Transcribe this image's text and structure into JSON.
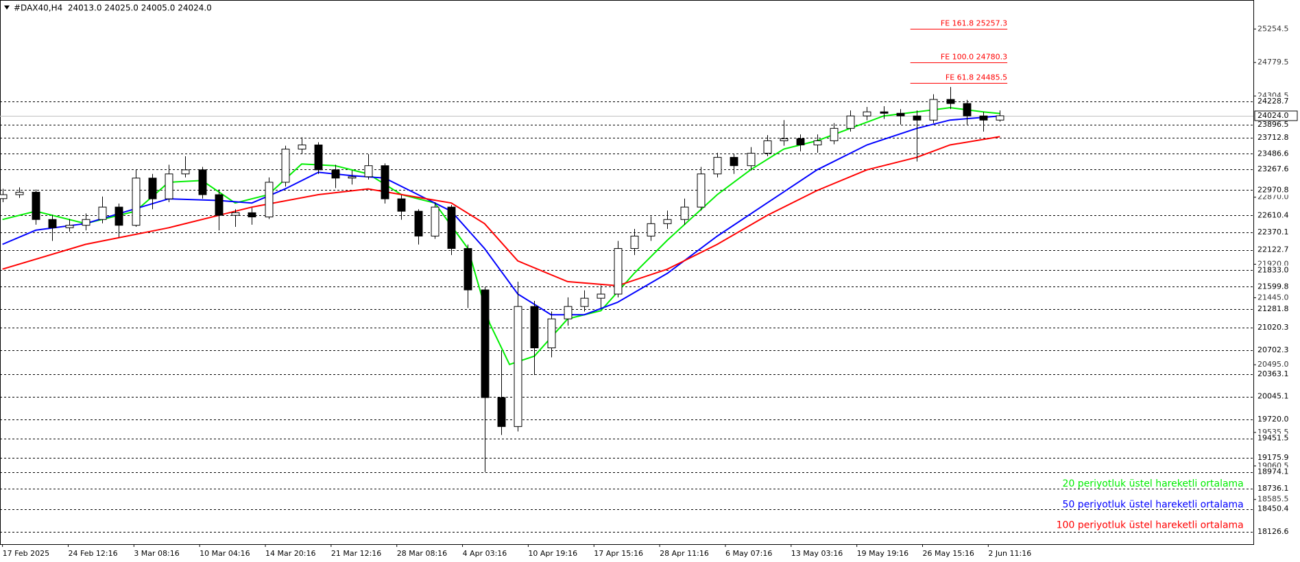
{
  "chart_data": {
    "type": "candlestick",
    "title": "#DAX40,H4  24013.0 24025.0 24005.0 24024.0",
    "categories": [
      "17 Feb 2025",
      "24 Feb 12:16",
      "3 Mar 08:16",
      "10 Mar 04:16",
      "14 Mar 20:16",
      "21 Mar 12:16",
      "28 Mar 08:16",
      "4 Apr 03:16",
      "10 Apr 19:16",
      "17 Apr 15:16",
      "28 Apr 11:16",
      "6 May 07:16",
      "13 May 03:16",
      "19 May 19:16",
      "26 May 15:16",
      "2 Jun 11:16"
    ],
    "ylim": [
      17951.5,
      25665.5
    ],
    "yticks": [
      25254.5,
      24779.5,
      24304.5,
      {
        "value": 22870,
        "label": "22870.0"
      },
      {
        "value": 21920,
        "label": "21920.0"
      },
      {
        "value": 21445,
        "label": "21445.0"
      },
      {
        "value": 20495,
        "label": "20495.0"
      },
      19535.5,
      19060.5,
      18585.5
    ],
    "candles": [
      [
        22850,
        22990,
        22800,
        22906
      ],
      [
        22906,
        23010,
        22860,
        22941
      ],
      [
        22941,
        22980,
        22480,
        22554
      ],
      [
        22554,
        22620,
        22250,
        22437
      ],
      [
        22437,
        22560,
        22380,
        22472
      ],
      [
        22472,
        22640,
        22400,
        22554
      ],
      [
        22554,
        22880,
        22500,
        22730
      ],
      [
        22730,
        22780,
        22300,
        22472
      ],
      [
        22472,
        23260,
        22450,
        23141
      ],
      [
        23141,
        23200,
        22700,
        22847
      ],
      [
        22847,
        23330,
        22800,
        23200
      ],
      [
        23200,
        23450,
        23150,
        23258
      ],
      [
        23258,
        23300,
        22850,
        22906
      ],
      [
        22906,
        22980,
        22400,
        22613
      ],
      [
        22613,
        22700,
        22450,
        22650
      ],
      [
        22650,
        22720,
        22480,
        22590
      ],
      [
        22590,
        23150,
        22560,
        23082
      ],
      [
        23082,
        23600,
        23020,
        23552
      ],
      [
        23552,
        23720,
        23480,
        23611
      ],
      [
        23611,
        23650,
        23200,
        23258
      ],
      [
        23258,
        23330,
        23000,
        23141
      ],
      [
        23141,
        23250,
        23050,
        23160
      ],
      [
        23160,
        23480,
        23120,
        23317
      ],
      [
        23317,
        23350,
        22780,
        22847
      ],
      [
        22847,
        22900,
        22550,
        22671
      ],
      [
        22671,
        22700,
        22200,
        22319
      ],
      [
        22319,
        22800,
        22280,
        22730
      ],
      [
        22730,
        22760,
        22050,
        22143
      ],
      [
        22143,
        22200,
        21300,
        21556
      ],
      [
        21556,
        21600,
        18974,
        20030
      ],
      [
        20030,
        20700,
        19500,
        19619
      ],
      [
        19619,
        21673,
        19550,
        21321
      ],
      [
        21321,
        21400,
        20350,
        20734
      ],
      [
        20734,
        21250,
        20600,
        21145
      ],
      [
        21145,
        21450,
        21050,
        21321
      ],
      [
        21321,
        21550,
        21250,
        21438
      ],
      [
        21438,
        21620,
        21300,
        21497
      ],
      [
        21497,
        22250,
        21450,
        22143
      ],
      [
        22143,
        22420,
        22050,
        22319
      ],
      [
        22319,
        22600,
        22250,
        22495
      ],
      [
        22495,
        22680,
        22420,
        22554
      ],
      [
        22554,
        22850,
        22480,
        22730
      ],
      [
        22730,
        23300,
        22680,
        23200
      ],
      [
        23200,
        23500,
        23150,
        23435
      ],
      [
        23435,
        23480,
        23200,
        23317
      ],
      [
        23317,
        23580,
        23250,
        23493
      ],
      [
        23493,
        23750,
        23450,
        23670
      ],
      [
        23670,
        23963,
        23600,
        23700
      ],
      [
        23700,
        23760,
        23520,
        23611
      ],
      [
        23611,
        23760,
        23500,
        23670
      ],
      [
        23670,
        23920,
        23620,
        23846
      ],
      [
        23846,
        24100,
        23800,
        24022
      ],
      [
        24022,
        24150,
        23960,
        24080
      ],
      [
        24080,
        24160,
        23980,
        24060
      ],
      [
        24060,
        24120,
        23900,
        24022
      ],
      [
        24022,
        24100,
        23376,
        23963
      ],
      [
        23963,
        24330,
        23920,
        24256
      ],
      [
        24256,
        24433,
        24120,
        24198
      ],
      [
        24198,
        24250,
        23900,
        24022
      ],
      [
        24022,
        24080,
        23800,
        23963
      ],
      [
        23963,
        24100,
        23940,
        24024
      ]
    ],
    "bull_color": "#ffffff",
    "bear_color": "#000000",
    "series": [
      {
        "name": "20 periyotluk üstel hareketli ortalama",
        "color": "#00ee00",
        "x": [
          0,
          2,
          5,
          8,
          10,
          12,
          14,
          16,
          18,
          20,
          22,
          24,
          26,
          28,
          29.3,
          30.5,
          32,
          34,
          36,
          38,
          40,
          43,
          45,
          47,
          49,
          51,
          53,
          55,
          57,
          59,
          60
        ],
        "values": [
          22554,
          22671,
          22496,
          22671,
          23082,
          23106,
          22788,
          22906,
          23341,
          23317,
          23200,
          22906,
          22788,
          22143,
          21086,
          20499,
          20617,
          21145,
          21262,
          21791,
          22261,
          22906,
          23258,
          23552,
          23670,
          23846,
          24022,
          24080,
          24139,
          24080,
          24057
        ]
      },
      {
        "name": "50 periyotluk üstel hareketli ortalama",
        "color": "#0000ff",
        "x": [
          0,
          2,
          5,
          10,
          13,
          15,
          17,
          19,
          21,
          23,
          25,
          27,
          29,
          31,
          33,
          35,
          37,
          40,
          43,
          46,
          49,
          52,
          55,
          57,
          60
        ],
        "values": [
          22202,
          22402,
          22496,
          22847,
          22824,
          22788,
          22988,
          23223,
          23176,
          23141,
          22906,
          22671,
          22143,
          21498,
          21204,
          21204,
          21380,
          21791,
          22319,
          22789,
          23258,
          23611,
          23846,
          23963,
          24021
        ]
      },
      {
        "name": "100 periyotluk üstel hareketli ortalama",
        "color": "#ff0000",
        "x": [
          0,
          5,
          10,
          15,
          19,
          22,
          27,
          29,
          31,
          34,
          37,
          40,
          43,
          46,
          49,
          52,
          55,
          57,
          60
        ],
        "values": [
          21850,
          22202,
          22437,
          22730,
          22906,
          22988,
          22788,
          22495,
          21967,
          21673,
          21615,
          21850,
          22202,
          22613,
          22965,
          23258,
          23435,
          23611,
          23728
        ]
      }
    ],
    "last_price": {
      "value": 24024,
      "label": "24024.0"
    },
    "levels": [
      24228.7,
      23896.5,
      23712.8,
      23486.6,
      23267.6,
      22970.8,
      22610.4,
      22370.1,
      22122.7,
      {
        "value": 21833,
        "label": "21833.0"
      },
      21599.8,
      21281.8,
      21020.3,
      20702.3,
      20363.1,
      20045.1,
      {
        "value": 19720,
        "label": "19720.0"
      },
      19451.5,
      19175.9,
      18974.1,
      18736.1,
      18450.4,
      18126.6
    ],
    "fibo_color": "#ff0000",
    "fibo": [
      {
        "label": "FE 161.8 25257.3",
        "value": 25257.3
      },
      {
        "label": "FE 100.0 24780.3",
        "value": 24780.3
      },
      {
        "label": "FE 61.8 24485.5",
        "value": 24485.5
      }
    ],
    "legend": "bottom-right"
  }
}
